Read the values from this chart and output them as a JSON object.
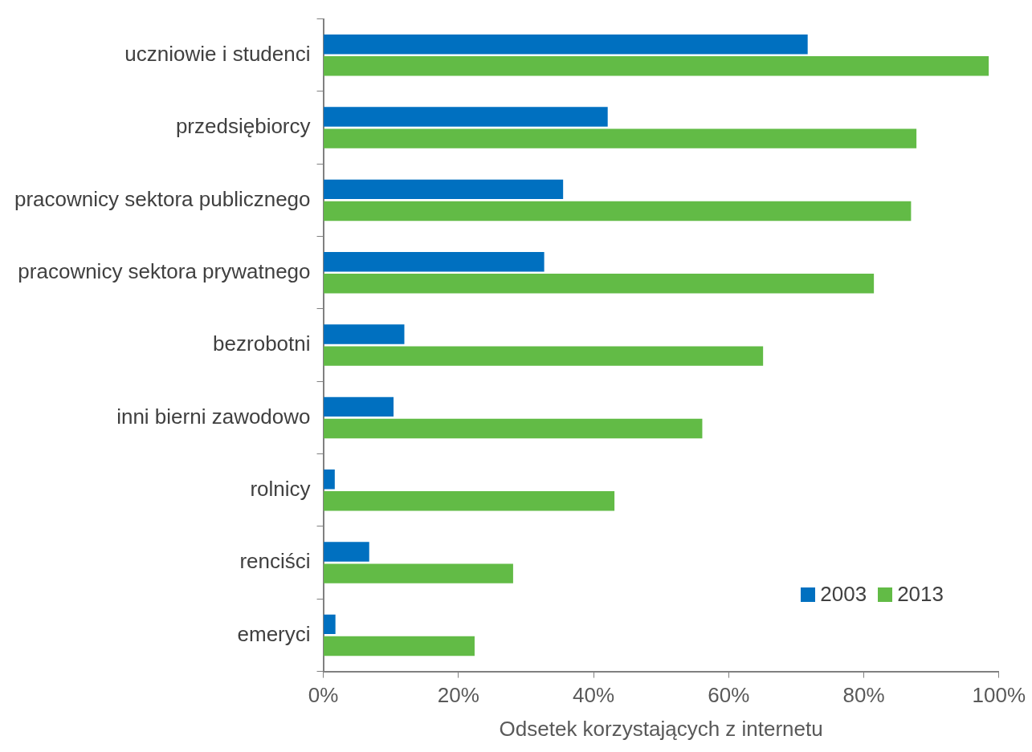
{
  "chart_data": {
    "type": "bar",
    "orientation": "horizontal",
    "xlabel": "Odsetek korzystających z internetu",
    "categories": [
      "uczniowie i studenci",
      "przedsiębiorcy",
      "pracownicy sektora publicznego",
      "pracownicy sektora prywatnego",
      "bezrobotni",
      "inni bierni zawodowo",
      "rolnicy",
      "renciści",
      "emeryci"
    ],
    "series": [
      {
        "name": "2003",
        "color": "#0070c0",
        "values": [
          71.7,
          42.1,
          35.5,
          32.7,
          12.0,
          10.4,
          1.7,
          6.8,
          1.8
        ]
      },
      {
        "name": "2013",
        "color": "#62bb46",
        "values": [
          98.5,
          87.8,
          87.0,
          81.5,
          65.1,
          56.1,
          43.1,
          28.1,
          22.4
        ]
      }
    ],
    "xlim": [
      0,
      100
    ],
    "xticks": [
      {
        "value": 0,
        "label": "0%"
      },
      {
        "value": 20,
        "label": "20%"
      },
      {
        "value": 40,
        "label": "40%"
      },
      {
        "value": 60,
        "label": "60%"
      },
      {
        "value": 80,
        "label": "80%"
      },
      {
        "value": 100,
        "label": "100%"
      }
    ],
    "grid": false,
    "legend": "bottom right"
  }
}
